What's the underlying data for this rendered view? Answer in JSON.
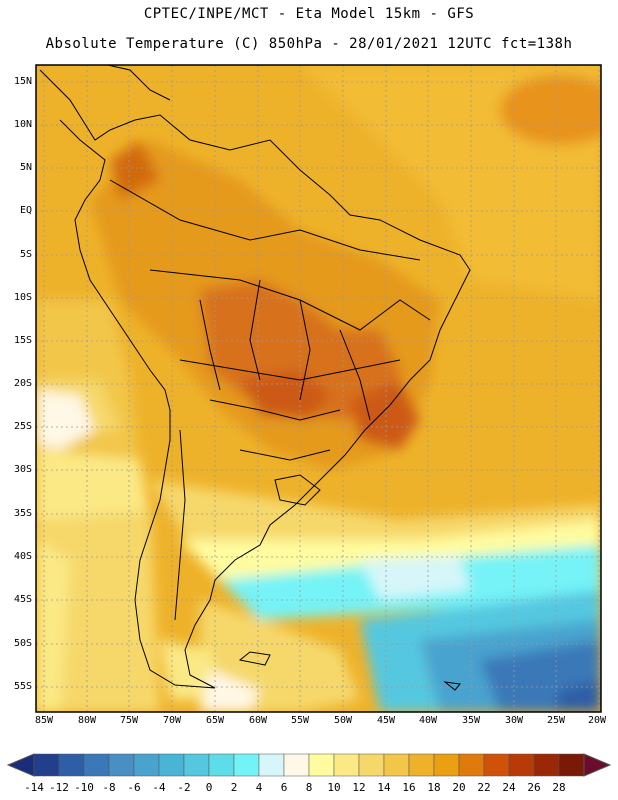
{
  "header": {
    "line1": "CPTEC/INPE/MCT -  Eta Model 15km - GFS",
    "line2": "Absolute Temperature (C) 850hPa - 28/01/2021 12UTC fct=138h"
  },
  "axes": {
    "lat_labels": [
      "15N",
      "10N",
      "5N",
      "EQ",
      "5S",
      "10S",
      "15S",
      "20S",
      "25S",
      "30S",
      "35S",
      "40S",
      "45S",
      "50S",
      "55S"
    ],
    "lon_labels": [
      "85W",
      "80W",
      "75W",
      "70W",
      "65W",
      "60W",
      "55W",
      "50W",
      "45W",
      "40W",
      "35W",
      "30W",
      "25W",
      "20W"
    ]
  },
  "colorbar": {
    "labels": [
      "-14",
      "-12",
      "-10",
      "-8",
      "-6",
      "-4",
      "-2",
      "0",
      "2",
      "4",
      "6",
      "8",
      "10",
      "12",
      "14",
      "16",
      "18",
      "20",
      "22",
      "24",
      "26",
      "28"
    ],
    "colors": [
      "#223f8c",
      "#2e5ea6",
      "#3b78b8",
      "#4a8fc4",
      "#4aa3cf",
      "#4ab4d6",
      "#55c8e0",
      "#5edcea",
      "#74f3f7",
      "#d6f6f9",
      "#fff8e6",
      "#fffca0",
      "#fbe985",
      "#f6d86a",
      "#f2c648",
      "#eeb22a",
      "#eaa010",
      "#e07a0c",
      "#d0520a",
      "#b83a08",
      "#9a2706",
      "#7a1a06"
    ],
    "under_color": "#1a2d7a",
    "over_color": "#6a0d2a"
  },
  "field": {
    "parameter": "Absolute Temperature",
    "units": "C",
    "level": "850hPa"
  }
}
